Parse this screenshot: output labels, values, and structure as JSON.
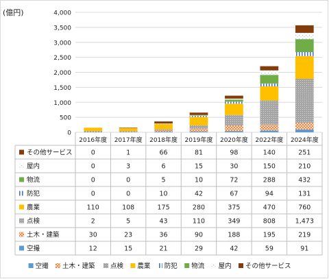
{
  "chart_data": {
    "type": "bar",
    "stacked": true,
    "unit_label": "(億円)",
    "categories": [
      "2016年度",
      "2017年度",
      "2018年度",
      "2019年度",
      "2020年度",
      "2022年度",
      "2024年度"
    ],
    "ylim": [
      0,
      4000
    ],
    "yticks": [
      "0",
      "500",
      "1,000",
      "1,500",
      "2,000",
      "2,500",
      "3,000",
      "3,500",
      "4,000"
    ],
    "grid": true,
    "legend_position": "bottom",
    "series": [
      {
        "name": "空撮",
        "color": "#5b9bd5",
        "pattern": "solid",
        "values": [
          12,
          15,
          21,
          29,
          42,
          59,
          91
        ],
        "labels": [
          "12",
          "15",
          "21",
          "29",
          "42",
          "59",
          "91"
        ]
      },
      {
        "name": "土木・建築",
        "color": "#ed7d31",
        "pattern": "cross",
        "values": [
          30,
          23,
          36,
          90,
          188,
          195,
          219
        ],
        "labels": [
          "30",
          "23",
          "36",
          "90",
          "188",
          "195",
          "219"
        ]
      },
      {
        "name": "点検",
        "color": "#a5a5a5",
        "pattern": "dots",
        "values": [
          2,
          5,
          43,
          110,
          349,
          808,
          1473
        ],
        "labels": [
          "2",
          "5",
          "43",
          "110",
          "349",
          "808",
          "1,473"
        ]
      },
      {
        "name": "農業",
        "color": "#ffc000",
        "pattern": "solid",
        "values": [
          110,
          108,
          175,
          280,
          375,
          470,
          760
        ],
        "labels": [
          "110",
          "108",
          "175",
          "280",
          "375",
          "470",
          "760"
        ]
      },
      {
        "name": "防犯",
        "color": "#4472c4",
        "pattern": "vlines",
        "values": [
          0,
          0,
          10,
          42,
          67,
          94,
          131
        ],
        "labels": [
          "0",
          "0",
          "10",
          "42",
          "67",
          "94",
          "131"
        ]
      },
      {
        "name": "物流",
        "color": "#70ad47",
        "pattern": "solid",
        "values": [
          0,
          0,
          5,
          10,
          72,
          288,
          432
        ],
        "labels": [
          "0",
          "0",
          "5",
          "10",
          "72",
          "288",
          "432"
        ]
      },
      {
        "name": "屋内",
        "color": "#9dc3e6",
        "pattern": "specks",
        "values": [
          0,
          3,
          6,
          15,
          30,
          150,
          210
        ],
        "labels": [
          "0",
          "3",
          "6",
          "15",
          "30",
          "150",
          "210"
        ]
      },
      {
        "name": "その他サービス",
        "color": "#843c0c",
        "pattern": "solid",
        "values": [
          0,
          1,
          66,
          81,
          98,
          140,
          251
        ],
        "labels": [
          "0",
          "1",
          "66",
          "81",
          "98",
          "140",
          "251"
        ]
      }
    ]
  }
}
